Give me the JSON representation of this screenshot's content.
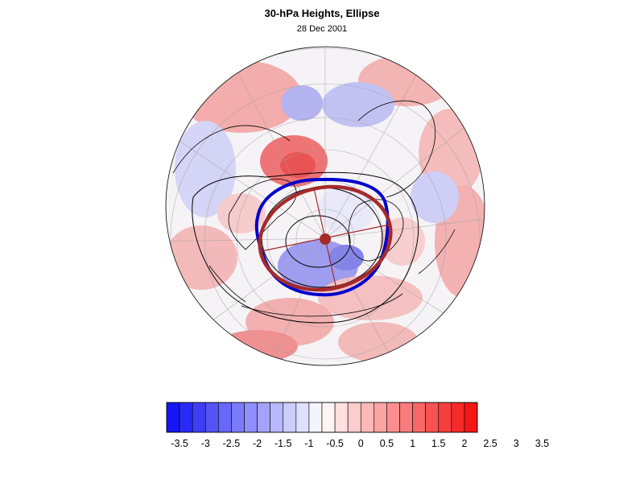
{
  "title": "30-hPa Heights, Ellipse",
  "subtitle": "28 Dec 2001",
  "colorbar": {
    "colors": [
      "#1616f6",
      "#2a2af7",
      "#3e3ef7",
      "#5353f8",
      "#6767f9",
      "#7b7bfa",
      "#8f8ffb",
      "#a3a3fc",
      "#b8b8fd",
      "#ccccfd",
      "#e0e0fe",
      "#f4f4ff",
      "#fff4f4",
      "#fee0e0",
      "#fdcccc",
      "#fdb8b8",
      "#fca3a3",
      "#fb8f8f",
      "#fa7b7b",
      "#f96767",
      "#f85353",
      "#f73e3e",
      "#f72a2a",
      "#f61616"
    ],
    "labels": [
      "-3.5",
      "-3",
      "-2.5",
      "-2",
      "-1.5",
      "-1",
      "-0.5",
      "0",
      "0.5",
      "1",
      "1.5",
      "2",
      "2.5",
      "3",
      "3.5"
    ]
  },
  "ellipse_colors": {
    "fitted": "#a52a2a",
    "contour": "#0000cc"
  }
}
